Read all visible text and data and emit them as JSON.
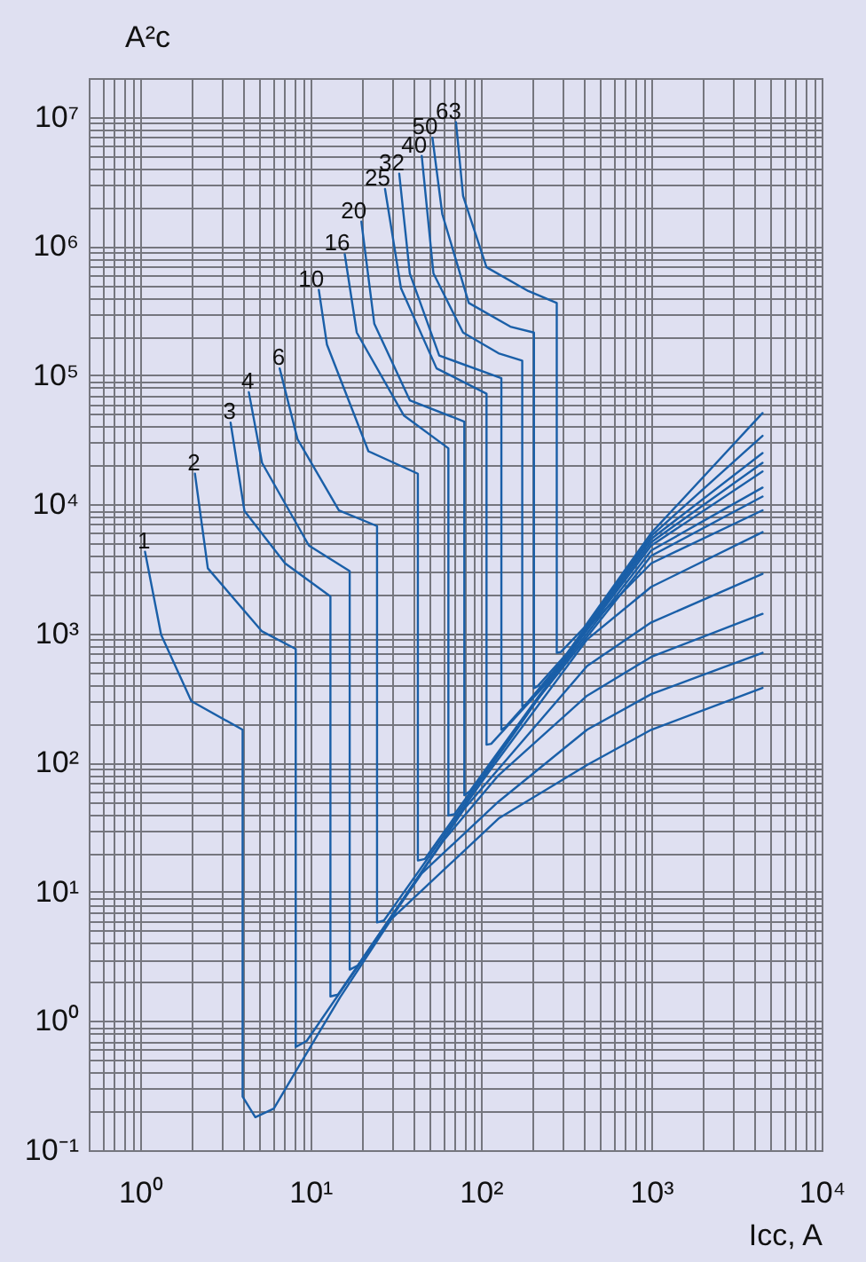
{
  "chart_data": {
    "type": "line",
    "xlabel": "Icc, A",
    "ylabel": "A²c",
    "log": "xy",
    "grid": true,
    "legend": false,
    "marker": "none",
    "line_style": "solid",
    "xlim": [
      0.5,
      10000
    ],
    "ylim": [
      0.1,
      20000000
    ],
    "xticks": [
      {
        "value": 1,
        "label": "10⁰"
      },
      {
        "value": 10,
        "label": "10¹"
      },
      {
        "value": 100,
        "label": "10²"
      },
      {
        "value": 1000,
        "label": "10³"
      },
      {
        "value": 10000,
        "label": "10⁴"
      }
    ],
    "yticks": [
      {
        "value": 0.1,
        "label": "10⁻¹"
      },
      {
        "value": 1,
        "label": "10⁰"
      },
      {
        "value": 10,
        "label": "10¹"
      },
      {
        "value": 100,
        "label": "10²"
      },
      {
        "value": 1000,
        "label": "10³"
      },
      {
        "value": 10000,
        "label": "10⁴"
      },
      {
        "value": 100000,
        "label": "10⁵"
      },
      {
        "value": 1000000,
        "label": "10⁶"
      },
      {
        "value": 10000000,
        "label": "10⁷"
      }
    ],
    "series": [
      {
        "name": "1",
        "color": "#1a5fa8",
        "x": [
          1.07,
          1.33,
          2.0,
          4.0,
          4.0,
          4.75,
          6.1,
          8.4,
          15,
          30,
          127,
          420,
          1000,
          4500
        ],
        "values": [
          4300,
          980,
          300,
          180,
          0.26,
          0.18,
          0.21,
          0.43,
          1.54,
          6.2,
          37,
          96,
          180,
          380
        ]
      },
      {
        "name": "2",
        "color": "#1a5fa8",
        "x": [
          2.1,
          2.5,
          5.2,
          8.2,
          8.2,
          9.5,
          45,
          127,
          420,
          1000,
          4500
        ],
        "values": [
          17300,
          3200,
          1040,
          760,
          0.63,
          0.7,
          13.9,
          50,
          180,
          340,
          710
        ]
      },
      {
        "name": "3",
        "color": "#1a5fa8",
        "x": [
          3.4,
          4.1,
          7.1,
          13.1,
          13.1,
          14.5,
          60,
          127,
          420,
          1000,
          4500
        ],
        "values": [
          43000,
          8900,
          3500,
          1940,
          1.55,
          1.6,
          24.7,
          80,
          330,
          660,
          1420
        ]
      },
      {
        "name": "4",
        "color": "#1a5fa8",
        "x": [
          4.35,
          5.2,
          9.8,
          17,
          17,
          19,
          80,
          420,
          1000,
          4500
        ],
        "values": [
          74000,
          21000,
          4800,
          3050,
          2.5,
          2.7,
          44,
          560,
          1220,
          2900
        ]
      },
      {
        "name": "6",
        "color": "#1a5fa8",
        "x": [
          6.6,
          8.4,
          14.7,
          24.6,
          24.6,
          27,
          110,
          420,
          1000,
          4500
        ],
        "values": [
          113000,
          32000,
          9000,
          6800,
          5.8,
          6.0,
          83,
          900,
          2300,
          6100
        ]
      },
      {
        "name": "10",
        "color": "#1a5fa8",
        "x": [
          11.2,
          12.5,
          21.9,
          42.7,
          42.7,
          47,
          160,
          420,
          1000,
          4500
        ],
        "values": [
          458000,
          173000,
          25800,
          17300,
          17.5,
          18,
          175,
          1100,
          3500,
          9000
        ]
      },
      {
        "name": "16",
        "color": "#1a5fa8",
        "x": [
          15.9,
          18.7,
          35.4,
          64.5,
          64.5,
          70,
          200,
          1000,
          4500
        ],
        "values": [
          865000,
          214000,
          48700,
          27200,
          39,
          40,
          274,
          4000,
          11500
        ]
      },
      {
        "name": "20",
        "color": "#1a5fa8",
        "x": [
          19.9,
          23.7,
          38.3,
          80,
          80,
          86,
          220,
          1000,
          4500
        ],
        "values": [
          1550000,
          251000,
          64000,
          43800,
          56,
          60,
          331,
          4400,
          13500
        ]
      },
      {
        "name": "25",
        "color": "#1a5fa8",
        "x": [
          27.4,
          34,
          55,
          108,
          108,
          115,
          250,
          1000,
          4500
        ],
        "values": [
          2770000,
          473000,
          113000,
          72000,
          138,
          140,
          429,
          4800,
          18000
        ]
      },
      {
        "name": "32",
        "color": "#1a5fa8",
        "x": [
          33.2,
          38.3,
          57,
          132,
          132,
          140,
          270,
          1000,
          4500
        ],
        "values": [
          3640000,
          615000,
          142000,
          95000,
          180,
          190,
          500,
          5100,
          21000
        ]
      },
      {
        "name": "40",
        "color": "#1a5fa8",
        "x": [
          45,
          52.7,
          78.7,
          127,
          175,
          175,
          185,
          300,
          1000,
          4500
        ],
        "values": [
          5000000,
          615000,
          214000,
          148000,
          130000,
          274,
          285,
          617,
          5400,
          25000
        ]
      },
      {
        "name": "50",
        "color": "#1a5fa8",
        "x": [
          52,
          59.4,
          85,
          149,
          205,
          205,
          215,
          320,
          1000,
          4500
        ],
        "values": [
          6900000,
          1770000,
          363000,
          238000,
          214000,
          377,
          390,
          702,
          5700,
          34000
        ]
      },
      {
        "name": "63",
        "color": "#1a5fa8",
        "x": [
          71.5,
          78.7,
          108,
          190,
          279,
          279,
          295,
          400,
          1000,
          4500
        ],
        "values": [
          9100000,
          2440000,
          686000,
          449000,
          363000,
          710,
          720,
          1096,
          6000,
          51000
        ]
      }
    ]
  }
}
